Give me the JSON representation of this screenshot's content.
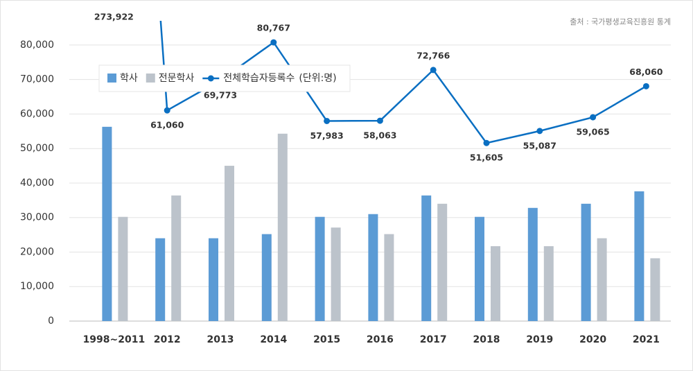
{
  "chart_data": {
    "type": "bar",
    "source": "출처 : 국가평생교육진흥원 통계",
    "unit": "(단위:명)",
    "categories": [
      "1998~2011",
      "2012",
      "2013",
      "2014",
      "2015",
      "2016",
      "2017",
      "2018",
      "2019",
      "2020",
      "2021"
    ],
    "series": [
      {
        "name": "학사",
        "color": "#5b9bd5",
        "values": [
          56300,
          24000,
          24000,
          25200,
          30200,
          31000,
          36400,
          30200,
          32800,
          34000,
          37600
        ]
      },
      {
        "name": "전문학사",
        "color": "#bcc3cb",
        "values": [
          30200,
          36400,
          45000,
          54300,
          27100,
          25200,
          34000,
          21700,
          21700,
          24000,
          18200
        ]
      },
      {
        "name": "전체학습자등록수",
        "type": "line",
        "color": "#0a6fc2",
        "values": [
          273922,
          61060,
          69773,
          80767,
          57983,
          58063,
          72766,
          51605,
          55087,
          59065,
          68060
        ],
        "value_labels": [
          "273,922",
          "61,060",
          "69,773",
          "80,767",
          "57,983",
          "58,063",
          "72,766",
          "51,605",
          "55,087",
          "59,065",
          "68,060"
        ]
      }
    ],
    "ylim": [
      0,
      84000
    ],
    "yticks": [
      0,
      {
        "value": 10000,
        "label": "10,000"
      },
      {
        "value": 20000,
        "label": "20,000"
      },
      {
        "value": 30000,
        "label": "30,000"
      },
      {
        "value": 40000,
        "label": "40,000"
      },
      {
        "value": 50000,
        "label": "50,000"
      },
      {
        "value": 60000,
        "label": "60,000"
      },
      {
        "value": 70000,
        "label": "70,000"
      },
      {
        "value": 80000,
        "label": "80,000"
      }
    ],
    "grid": true
  }
}
